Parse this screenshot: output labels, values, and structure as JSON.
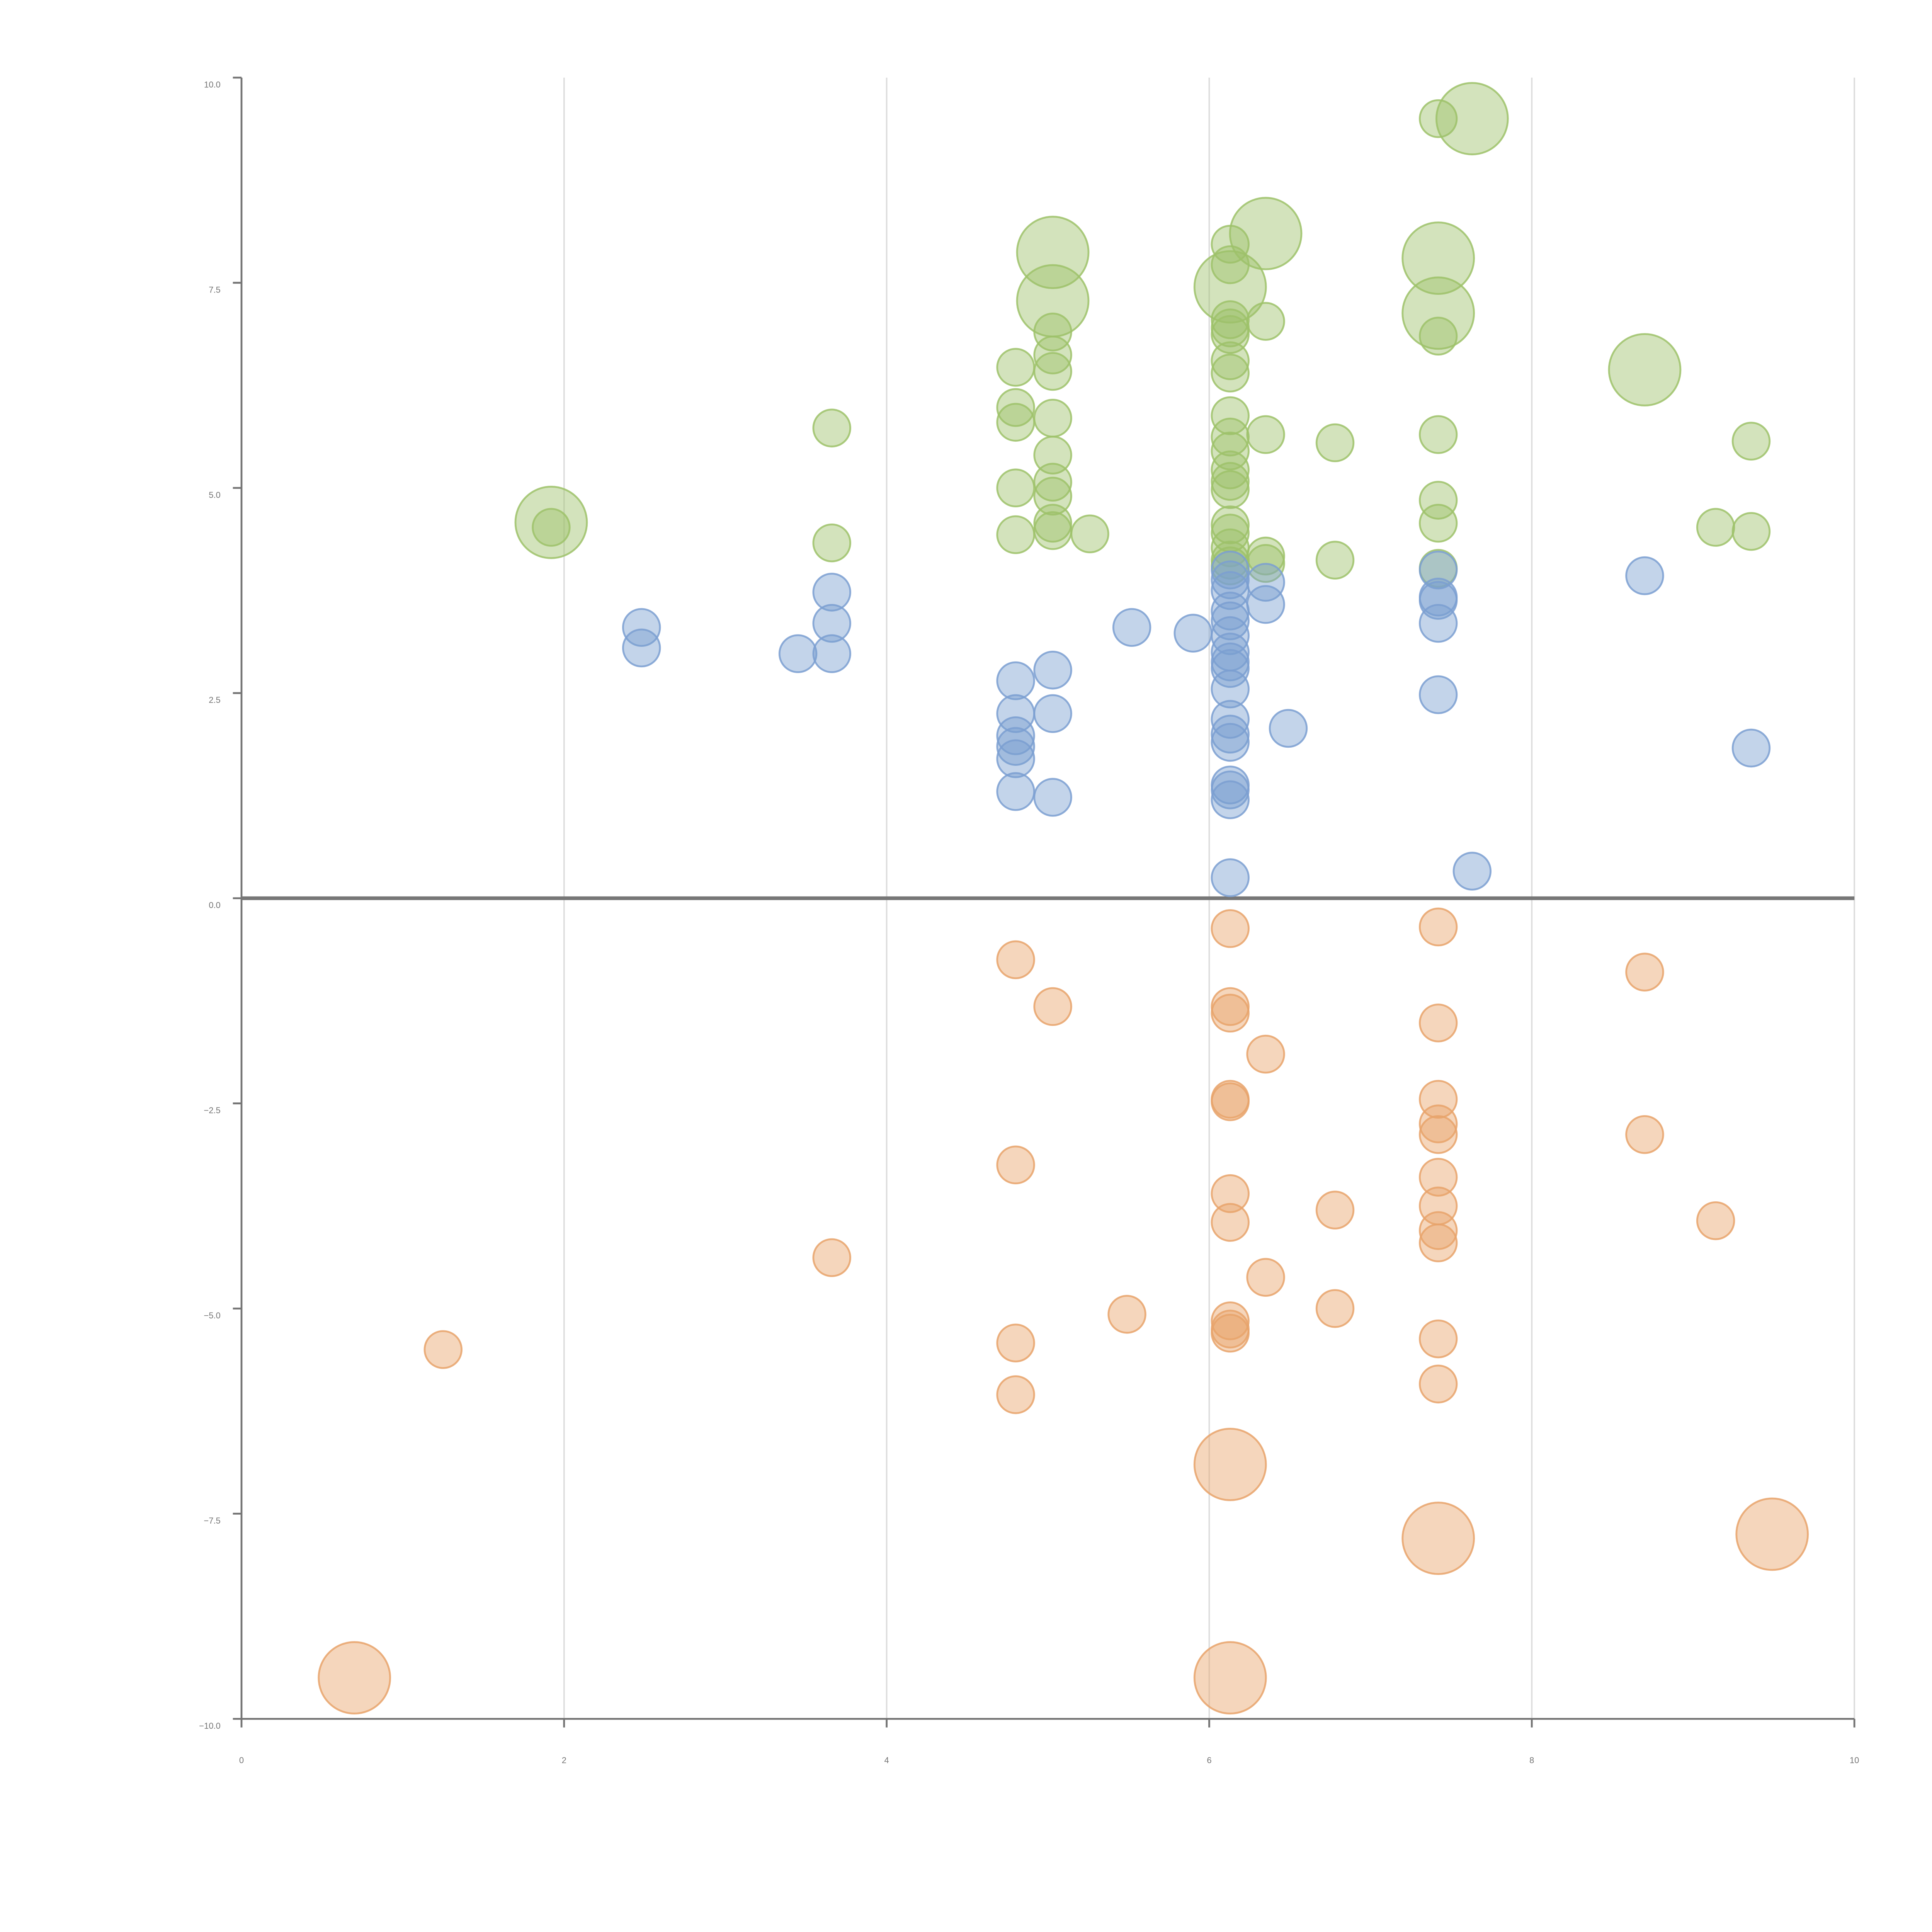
{
  "chart_data": {
    "type": "scatter",
    "title": "",
    "xlabel": "",
    "ylabel": "",
    "xlim": [
      0,
      10
    ],
    "ylim": [
      -10,
      10
    ],
    "xticks": [
      0,
      2,
      4,
      6,
      8,
      10
    ],
    "yticks": [
      -10,
      -7.5,
      -5,
      -2.5,
      0,
      2.5,
      5,
      7.5,
      10
    ],
    "xtick_labels": [
      "0",
      "2",
      "4",
      "6",
      "8",
      "10"
    ],
    "ytick_labels": [
      "−10.0",
      "−7.5",
      "−5.0",
      "−2.5",
      "0.0",
      "2.5",
      "5.0",
      "7.5",
      "10.0"
    ],
    "vertical_grid": true,
    "zero_line": true,
    "legend": "none",
    "series": [
      {
        "name": "green",
        "color": "#9dc26a",
        "points": [
          {
            "x": 1.92,
            "y": 4.58,
            "r": 2
          },
          {
            "x": 1.92,
            "y": 4.52,
            "r": 1
          },
          {
            "x": 3.66,
            "y": 5.73,
            "r": 1
          },
          {
            "x": 3.66,
            "y": 4.33,
            "r": 1
          },
          {
            "x": 4.8,
            "y": 6.47,
            "r": 1
          },
          {
            "x": 4.8,
            "y": 5.98,
            "r": 1
          },
          {
            "x": 4.8,
            "y": 5.8,
            "r": 1
          },
          {
            "x": 4.8,
            "y": 5.0,
            "r": 1
          },
          {
            "x": 4.8,
            "y": 4.43,
            "r": 1
          },
          {
            "x": 5.03,
            "y": 7.87,
            "r": 2
          },
          {
            "x": 5.03,
            "y": 7.28,
            "r": 2
          },
          {
            "x": 5.03,
            "y": 6.9,
            "r": 1
          },
          {
            "x": 5.03,
            "y": 6.62,
            "r": 1
          },
          {
            "x": 5.03,
            "y": 6.42,
            "r": 1
          },
          {
            "x": 5.03,
            "y": 5.85,
            "r": 1
          },
          {
            "x": 5.03,
            "y": 5.4,
            "r": 1
          },
          {
            "x": 5.03,
            "y": 5.07,
            "r": 1
          },
          {
            "x": 5.03,
            "y": 4.9,
            "r": 1
          },
          {
            "x": 5.03,
            "y": 4.57,
            "r": 1
          },
          {
            "x": 5.03,
            "y": 4.48,
            "r": 1
          },
          {
            "x": 5.26,
            "y": 4.44,
            "r": 1
          },
          {
            "x": 6.13,
            "y": 7.97,
            "r": 1
          },
          {
            "x": 6.13,
            "y": 7.45,
            "r": 2
          },
          {
            "x": 6.13,
            "y": 7.72,
            "r": 1
          },
          {
            "x": 6.13,
            "y": 7.05,
            "r": 1
          },
          {
            "x": 6.13,
            "y": 6.95,
            "r": 1
          },
          {
            "x": 6.13,
            "y": 6.87,
            "r": 1
          },
          {
            "x": 6.13,
            "y": 6.55,
            "r": 1
          },
          {
            "x": 6.13,
            "y": 6.4,
            "r": 1
          },
          {
            "x": 6.13,
            "y": 5.88,
            "r": 1
          },
          {
            "x": 6.13,
            "y": 5.62,
            "r": 1
          },
          {
            "x": 6.13,
            "y": 5.45,
            "r": 1
          },
          {
            "x": 6.13,
            "y": 5.22,
            "r": 1
          },
          {
            "x": 6.13,
            "y": 5.08,
            "r": 1
          },
          {
            "x": 6.13,
            "y": 4.98,
            "r": 1
          },
          {
            "x": 6.13,
            "y": 4.55,
            "r": 1
          },
          {
            "x": 6.13,
            "y": 4.45,
            "r": 1
          },
          {
            "x": 6.13,
            "y": 4.27,
            "r": 1
          },
          {
            "x": 6.13,
            "y": 4.12,
            "r": 1
          },
          {
            "x": 6.13,
            "y": 4.05,
            "r": 1
          },
          {
            "x": 6.35,
            "y": 8.1,
            "r": 2
          },
          {
            "x": 6.35,
            "y": 7.03,
            "r": 1
          },
          {
            "x": 6.35,
            "y": 5.65,
            "r": 1
          },
          {
            "x": 6.35,
            "y": 4.17,
            "r": 1
          },
          {
            "x": 6.35,
            "y": 4.08,
            "r": 1
          },
          {
            "x": 6.78,
            "y": 5.55,
            "r": 1
          },
          {
            "x": 6.78,
            "y": 4.12,
            "r": 1
          },
          {
            "x": 7.42,
            "y": 9.5,
            "r": 1
          },
          {
            "x": 7.42,
            "y": 7.8,
            "r": 2
          },
          {
            "x": 7.42,
            "y": 7.13,
            "r": 2
          },
          {
            "x": 7.42,
            "y": 6.85,
            "r": 1
          },
          {
            "x": 7.42,
            "y": 5.65,
            "r": 1
          },
          {
            "x": 7.42,
            "y": 4.85,
            "r": 1
          },
          {
            "x": 7.42,
            "y": 4.57,
            "r": 1
          },
          {
            "x": 7.42,
            "y": 4.02,
            "r": 1
          },
          {
            "x": 7.63,
            "y": 9.5,
            "r": 2
          },
          {
            "x": 8.7,
            "y": 6.44,
            "r": 2
          },
          {
            "x": 9.14,
            "y": 4.52,
            "r": 1
          },
          {
            "x": 9.36,
            "y": 5.57,
            "r": 1
          },
          {
            "x": 9.36,
            "y": 4.47,
            "r": 1
          }
        ]
      },
      {
        "name": "blue",
        "color": "#7b9fd1",
        "points": [
          {
            "x": 2.48,
            "y": 3.3,
            "r": 1
          },
          {
            "x": 2.48,
            "y": 3.05,
            "r": 1
          },
          {
            "x": 3.45,
            "y": 2.98,
            "r": 1
          },
          {
            "x": 3.66,
            "y": 3.73,
            "r": 1
          },
          {
            "x": 3.66,
            "y": 3.35,
            "r": 1
          },
          {
            "x": 3.66,
            "y": 2.98,
            "r": 1
          },
          {
            "x": 4.8,
            "y": 2.65,
            "r": 1
          },
          {
            "x": 4.8,
            "y": 2.25,
            "r": 1
          },
          {
            "x": 4.8,
            "y": 1.98,
            "r": 1
          },
          {
            "x": 4.8,
            "y": 1.85,
            "r": 1
          },
          {
            "x": 4.8,
            "y": 1.7,
            "r": 1
          },
          {
            "x": 4.8,
            "y": 1.3,
            "r": 1
          },
          {
            "x": 5.03,
            "y": 2.78,
            "r": 1
          },
          {
            "x": 5.03,
            "y": 2.25,
            "r": 1
          },
          {
            "x": 5.03,
            "y": 1.23,
            "r": 1
          },
          {
            "x": 5.52,
            "y": 3.3,
            "r": 1
          },
          {
            "x": 5.9,
            "y": 3.23,
            "r": 1
          },
          {
            "x": 6.13,
            "y": 4.0,
            "r": 1
          },
          {
            "x": 6.13,
            "y": 3.88,
            "r": 1
          },
          {
            "x": 6.13,
            "y": 3.75,
            "r": 1
          },
          {
            "x": 6.13,
            "y": 3.5,
            "r": 1
          },
          {
            "x": 6.13,
            "y": 3.38,
            "r": 1
          },
          {
            "x": 6.13,
            "y": 3.2,
            "r": 1
          },
          {
            "x": 6.13,
            "y": 3.0,
            "r": 1
          },
          {
            "x": 6.13,
            "y": 2.88,
            "r": 1
          },
          {
            "x": 6.13,
            "y": 2.8,
            "r": 1
          },
          {
            "x": 6.13,
            "y": 2.55,
            "r": 1
          },
          {
            "x": 6.13,
            "y": 2.18,
            "r": 1
          },
          {
            "x": 6.13,
            "y": 2.0,
            "r": 1
          },
          {
            "x": 6.13,
            "y": 1.9,
            "r": 1
          },
          {
            "x": 6.13,
            "y": 1.38,
            "r": 1
          },
          {
            "x": 6.13,
            "y": 1.32,
            "r": 1
          },
          {
            "x": 6.13,
            "y": 1.2,
            "r": 1
          },
          {
            "x": 6.13,
            "y": 0.25,
            "r": 1
          },
          {
            "x": 6.35,
            "y": 3.85,
            "r": 1
          },
          {
            "x": 6.35,
            "y": 3.58,
            "r": 1
          },
          {
            "x": 6.49,
            "y": 2.07,
            "r": 1
          },
          {
            "x": 7.42,
            "y": 4.0,
            "r": 1
          },
          {
            "x": 7.42,
            "y": 3.67,
            "r": 1
          },
          {
            "x": 7.42,
            "y": 3.63,
            "r": 1
          },
          {
            "x": 7.42,
            "y": 3.35,
            "r": 1
          },
          {
            "x": 7.42,
            "y": 2.48,
            "r": 1
          },
          {
            "x": 7.63,
            "y": 0.33,
            "r": 1
          },
          {
            "x": 8.7,
            "y": 3.93,
            "r": 1
          },
          {
            "x": 9.36,
            "y": 1.83,
            "r": 1
          }
        ]
      },
      {
        "name": "orange",
        "color": "#e8a36b",
        "points": [
          {
            "x": 0.7,
            "y": -9.5,
            "r": 2
          },
          {
            "x": 1.25,
            "y": -5.5,
            "r": 1
          },
          {
            "x": 3.66,
            "y": -4.38,
            "r": 1
          },
          {
            "x": 4.8,
            "y": -0.75,
            "r": 1
          },
          {
            "x": 4.8,
            "y": -3.25,
            "r": 1
          },
          {
            "x": 4.8,
            "y": -5.42,
            "r": 1
          },
          {
            "x": 4.8,
            "y": -6.05,
            "r": 1
          },
          {
            "x": 5.03,
            "y": -1.32,
            "r": 1
          },
          {
            "x": 5.49,
            "y": -5.07,
            "r": 1
          },
          {
            "x": 6.13,
            "y": -0.37,
            "r": 1
          },
          {
            "x": 6.13,
            "y": -1.32,
            "r": 1
          },
          {
            "x": 6.13,
            "y": -1.4,
            "r": 1
          },
          {
            "x": 6.13,
            "y": -2.45,
            "r": 1
          },
          {
            "x": 6.13,
            "y": -2.48,
            "r": 1
          },
          {
            "x": 6.13,
            "y": -3.6,
            "r": 1
          },
          {
            "x": 6.13,
            "y": -3.95,
            "r": 1
          },
          {
            "x": 6.13,
            "y": -5.15,
            "r": 1
          },
          {
            "x": 6.13,
            "y": -5.25,
            "r": 1
          },
          {
            "x": 6.13,
            "y": -5.3,
            "r": 1
          },
          {
            "x": 6.13,
            "y": -6.9,
            "r": 2
          },
          {
            "x": 6.13,
            "y": -9.5,
            "r": 2
          },
          {
            "x": 6.35,
            "y": -1.9,
            "r": 1
          },
          {
            "x": 6.35,
            "y": -4.62,
            "r": 1
          },
          {
            "x": 6.78,
            "y": -3.8,
            "r": 1
          },
          {
            "x": 6.78,
            "y": -5.0,
            "r": 1
          },
          {
            "x": 7.42,
            "y": -0.35,
            "r": 1
          },
          {
            "x": 7.42,
            "y": -1.52,
            "r": 1
          },
          {
            "x": 7.42,
            "y": -2.45,
            "r": 1
          },
          {
            "x": 7.42,
            "y": -2.75,
            "r": 1
          },
          {
            "x": 7.42,
            "y": -2.88,
            "r": 1
          },
          {
            "x": 7.42,
            "y": -3.4,
            "r": 1
          },
          {
            "x": 7.42,
            "y": -3.75,
            "r": 1
          },
          {
            "x": 7.42,
            "y": -4.05,
            "r": 1
          },
          {
            "x": 7.42,
            "y": -4.2,
            "r": 1
          },
          {
            "x": 7.42,
            "y": -5.37,
            "r": 1
          },
          {
            "x": 7.42,
            "y": -5.92,
            "r": 1
          },
          {
            "x": 7.42,
            "y": -7.8,
            "r": 2
          },
          {
            "x": 8.7,
            "y": -0.9,
            "r": 1
          },
          {
            "x": 8.7,
            "y": -2.88,
            "r": 1
          },
          {
            "x": 9.14,
            "y": -3.93,
            "r": 1
          },
          {
            "x": 9.49,
            "y": -7.75,
            "r": 2
          }
        ]
      }
    ]
  }
}
